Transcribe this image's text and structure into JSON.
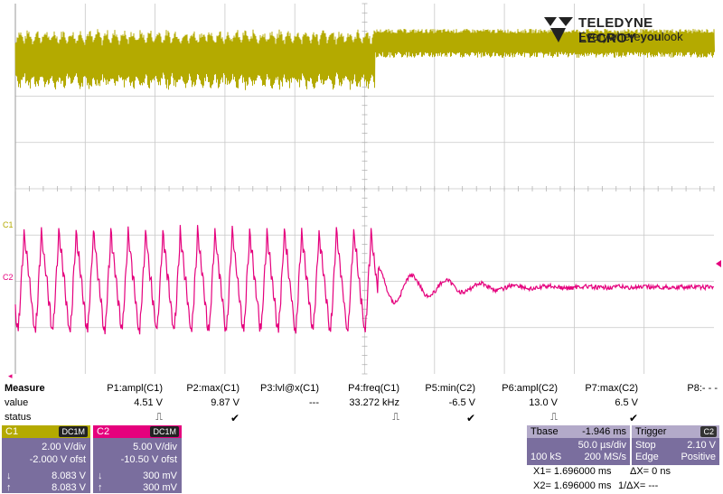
{
  "brand": {
    "name": "TELEDYNE LECROY",
    "tagline_pre": "Everywhere",
    "tagline_bold": "you",
    "tagline_post": "look"
  },
  "channel_labels": {
    "c1": "C1",
    "c2": "C2"
  },
  "colors": {
    "c1": "#b4aa00",
    "c2": "#e5007d",
    "grid": "#bfbfbf",
    "panel": "#7a6e9e"
  },
  "measure": {
    "title": "Measure",
    "row_value": "value",
    "row_status": "status",
    "params": [
      {
        "label": "P1:ampl(C1)",
        "value": "4.51 V",
        "status": "pulse"
      },
      {
        "label": "P2:max(C1)",
        "value": "9.87 V",
        "status": "check"
      },
      {
        "label": "P3:lvl@x(C1)",
        "value": "---",
        "status": ""
      },
      {
        "label": "P4:freq(C1)",
        "value": "33.272 kHz",
        "status": "pulse"
      },
      {
        "label": "P5:min(C2)",
        "value": "-6.5 V",
        "status": "check"
      },
      {
        "label": "P6:ampl(C2)",
        "value": "13.0 V",
        "status": "pulse"
      },
      {
        "label": "P7:max(C2)",
        "value": "6.5 V",
        "status": "check"
      },
      {
        "label": "P8:- - -",
        "value": "",
        "status": ""
      }
    ]
  },
  "c1_panel": {
    "name": "C1",
    "coupling": "DC1M",
    "vdiv": "2.00 V/div",
    "offset": "-2.000 V ofst",
    "cur1": "8.083 V",
    "cur2": "8.083 V"
  },
  "c2_panel": {
    "name": "C2",
    "coupling": "DC1M",
    "vdiv": "5.00 V/div",
    "offset": "-10.50 V ofst",
    "cur1": "300 mV",
    "cur2": "300 mV"
  },
  "tbase": {
    "label": "Tbase",
    "delay": "-1.946 ms",
    "tdiv": "50.0 µs/div",
    "samples": "100 kS",
    "rate": "200 MS/s"
  },
  "trigger": {
    "label": "Trigger",
    "source": "C2",
    "mode": "Stop",
    "level": "2.10 V",
    "type": "Edge",
    "slope": "Positive"
  },
  "cursors": {
    "x1": "X1= 1.696000 ms",
    "dx": "ΔX= 0 ns",
    "x2": "X2= 1.696000 ms",
    "inv_dx": "1/ΔX= ---"
  },
  "pulse_glyph": "⎍",
  "check_glyph": "✔",
  "down_arrow": "↓",
  "up_arrow": "↑"
}
